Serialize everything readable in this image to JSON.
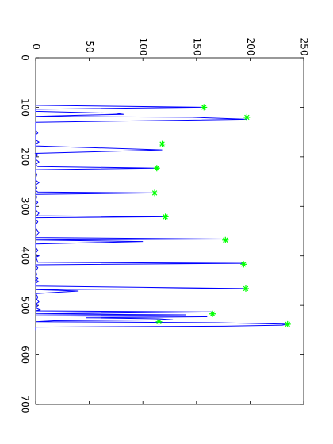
{
  "chart_data": {
    "type": "line",
    "title": "",
    "xlabel": "",
    "ylabel": "",
    "orientation": "rotated-90",
    "xlim": [
      0,
      700
    ],
    "ylim": [
      0,
      250
    ],
    "x_ticks": [
      "0",
      "100",
      "200",
      "300",
      "400",
      "500",
      "600",
      "700"
    ],
    "y_ticks": [
      "0",
      "50",
      "100",
      "150",
      "200",
      "250"
    ],
    "colors": {
      "line": "#0000ff",
      "marker": "#00ff00",
      "axes": "#000000"
    },
    "series": [
      {
        "marker": "none",
        "x": [
          95,
          96,
          100,
          104,
          108,
          112,
          114,
          116,
          118,
          120,
          124,
          130,
          138,
          146,
          152,
          155,
          160,
          166,
          170,
          174,
          178,
          186,
          193,
          196,
          200,
          205,
          210,
          216,
          220,
          223,
          226,
          230,
          236,
          243,
          247,
          252,
          257,
          263,
          268,
          271,
          273,
          276,
          281,
          287,
          292,
          296,
          301,
          307,
          314,
          319,
          321,
          323,
          326,
          331,
          337,
          344,
          353,
          358,
          363,
          366,
          368,
          371,
          376,
          383,
          389,
          394,
          398,
          400,
          403,
          407,
          413,
          415,
          418,
          420,
          424,
          431,
          437,
          442,
          446,
          449,
          451,
          455,
          461,
          466,
          468,
          471,
          476,
          483,
          488,
          493,
          497,
          501,
          505,
          509,
          511,
          513,
          517,
          519,
          521,
          523,
          525,
          527,
          529,
          531,
          533,
          535,
          538,
          540,
          542,
          544,
          547,
          550
        ],
        "y": [
          0,
          0,
          157,
          0,
          0,
          75,
          82,
          40,
          0,
          146,
          197,
          0,
          0,
          0,
          2,
          0,
          0,
          0,
          3,
          0,
          0,
          118,
          0,
          2,
          0,
          0,
          3,
          0,
          2,
          113,
          0,
          0,
          1,
          0,
          0,
          3,
          0,
          1,
          0,
          2,
          111,
          0,
          1,
          0,
          2,
          0,
          0,
          0,
          3,
          1,
          121,
          0,
          0,
          2,
          0,
          0,
          3,
          1,
          0,
          177,
          0,
          100,
          0,
          0,
          2,
          0,
          1,
          3,
          0,
          1,
          2,
          194,
          0,
          0,
          2,
          0,
          1,
          0,
          2,
          0,
          3,
          0,
          0,
          196,
          0,
          40,
          0,
          2,
          1,
          3,
          0,
          2,
          0,
          4,
          0,
          165,
          0,
          140,
          0,
          160,
          47,
          115,
          128,
          17,
          0,
          170,
          235,
          230,
          176,
          0,
          0,
          0
        ]
      },
      {
        "marker": "asterisk",
        "x": [
          100,
          120,
          174,
          223,
          273,
          321,
          368,
          417,
          466,
          517,
          533,
          538
        ],
        "y": [
          157,
          197,
          118,
          113,
          111,
          121,
          177,
          194,
          196,
          165,
          115,
          235
        ]
      }
    ]
  }
}
